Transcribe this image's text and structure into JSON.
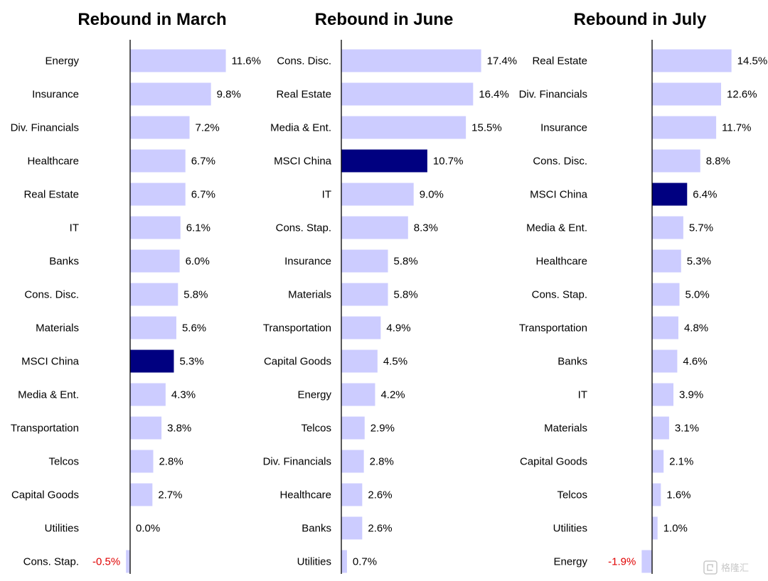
{
  "colors": {
    "bar": "#ccccff",
    "highlight": "#000080",
    "negative_label": "#e00000",
    "axis": "#000000"
  },
  "watermark": {
    "icon": "logo-icon",
    "text": "格隆汇"
  },
  "chart_data": [
    {
      "type": "bar",
      "orientation": "horizontal",
      "title": "Rebound in March",
      "highlight": "MSCI China",
      "categories": [
        "Energy",
        "Insurance",
        "Div. Financials",
        "Healthcare",
        "Real Estate",
        "IT",
        "Banks",
        "Cons. Disc.",
        "Materials",
        "MSCI China",
        "Media & Ent.",
        "Transportation",
        "Telcos",
        "Capital Goods",
        "Utilities",
        "Cons. Stap."
      ],
      "values": [
        11.6,
        9.8,
        7.2,
        6.7,
        6.7,
        6.1,
        6.0,
        5.8,
        5.6,
        5.3,
        4.3,
        3.8,
        2.8,
        2.7,
        0.0,
        -0.5
      ],
      "labels": [
        "11.6%",
        "9.8%",
        "7.2%",
        "6.7%",
        "6.7%",
        "6.1%",
        "6.0%",
        "5.8%",
        "5.6%",
        "5.3%",
        "4.3%",
        "3.8%",
        "2.8%",
        "2.7%",
        "0.0%",
        "-0.5%"
      ],
      "grid": false
    },
    {
      "type": "bar",
      "orientation": "horizontal",
      "title": "Rebound in June",
      "highlight": "MSCI China",
      "categories": [
        "Cons. Disc.",
        "Real Estate",
        "Media & Ent.",
        "MSCI China",
        "IT",
        "Cons. Stap.",
        "Insurance",
        "Materials",
        "Transportation",
        "Capital Goods",
        "Energy",
        "Telcos",
        "Div. Financials",
        "Healthcare",
        "Banks",
        "Utilities"
      ],
      "values": [
        17.4,
        16.4,
        15.5,
        10.7,
        9.0,
        8.3,
        5.8,
        5.8,
        4.9,
        4.5,
        4.2,
        2.9,
        2.8,
        2.6,
        2.6,
        0.7
      ],
      "labels": [
        "17.4%",
        "16.4%",
        "15.5%",
        "10.7%",
        "9.0%",
        "8.3%",
        "5.8%",
        "5.8%",
        "4.9%",
        "4.5%",
        "4.2%",
        "2.9%",
        "2.8%",
        "2.6%",
        "2.6%",
        "0.7%"
      ],
      "grid": false
    },
    {
      "type": "bar",
      "orientation": "horizontal",
      "title": "Rebound in July",
      "highlight": "MSCI China",
      "categories": [
        "Real Estate",
        "Div. Financials",
        "Insurance",
        "Cons. Disc.",
        "MSCI China",
        "Media & Ent.",
        "Healthcare",
        "Cons. Stap.",
        "Transportation",
        "Banks",
        "IT",
        "Materials",
        "Capital Goods",
        "Telcos",
        "Utilities",
        "Energy"
      ],
      "values": [
        14.5,
        12.6,
        11.7,
        8.8,
        6.4,
        5.7,
        5.3,
        5.0,
        4.8,
        4.6,
        3.9,
        3.1,
        2.1,
        1.6,
        1.0,
        -1.9
      ],
      "labels": [
        "14.5%",
        "12.6%",
        "11.7%",
        "8.8%",
        "6.4%",
        "5.7%",
        "5.3%",
        "5.0%",
        "4.8%",
        "4.6%",
        "3.9%",
        "3.1%",
        "2.1%",
        "1.6%",
        "1.0%",
        "-1.9%"
      ],
      "grid": false
    }
  ]
}
